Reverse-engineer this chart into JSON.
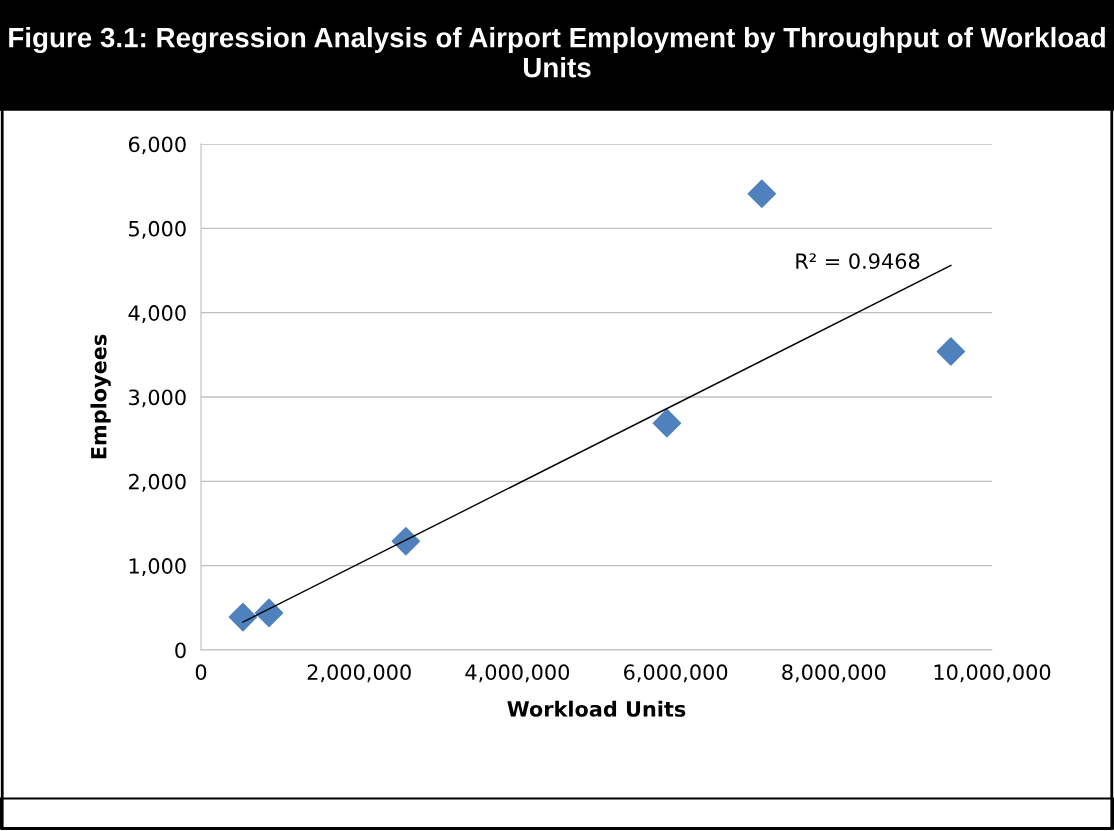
{
  "chart_data": {
    "type": "scatter",
    "title": "Figure 3.1: Regression Analysis of Airport Employment by Throughput of Workload Units",
    "xlabel": "Workload Units",
    "ylabel": "Employees",
    "series": [
      {
        "color": "#4f81bd",
        "marker": "diamond",
        "x": [
          530000,
          860000,
          2590000,
          5890000,
          7090000,
          9480000
        ],
        "values": [
          390,
          440,
          1290,
          2690,
          5410,
          3540
        ]
      },
      {
        "type": "line",
        "color": "#000000",
        "marker": "none",
        "line_style": "solid",
        "x": [
          530000,
          9480000
        ],
        "values": [
          330,
          4560
        ]
      }
    ],
    "annotations": [
      "R² = 0.9468"
    ],
    "xlim": [
      0,
      10000000
    ],
    "ylim": [
      0,
      6000
    ],
    "xticks": [
      0,
      {
        "value": 2000000,
        "label": "2,000,000"
      },
      {
        "value": 4000000,
        "label": "4,000,000"
      },
      {
        "value": 6000000,
        "label": "6,000,000"
      },
      {
        "value": 8000000,
        "label": "8,000,000"
      },
      {
        "value": 10000000,
        "label": "10,000,000"
      }
    ],
    "yticks": [
      0,
      {
        "value": 1000,
        "label": "1,000"
      },
      {
        "value": 2000,
        "label": "2,000"
      },
      {
        "value": 3000,
        "label": "3,000"
      },
      {
        "value": 4000,
        "label": "4,000"
      },
      {
        "value": 5000,
        "label": "5,000"
      },
      {
        "value": 6000,
        "label": "6,000"
      }
    ],
    "grid": "y",
    "legend": false
  }
}
